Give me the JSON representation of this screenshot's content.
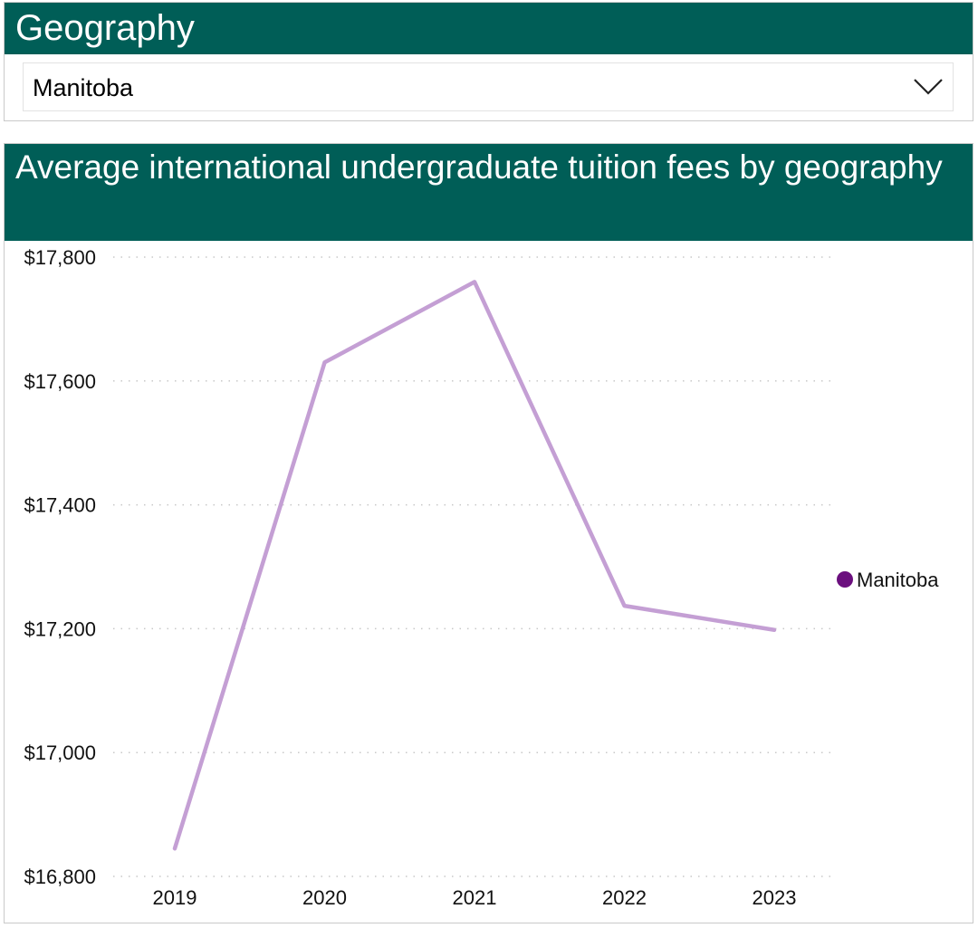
{
  "geography_filter": {
    "title": "Geography",
    "selected": "Manitoba"
  },
  "chart_panel": {
    "title": "Average international undergraduate tuition fees by geography"
  },
  "colors": {
    "header_bg": "#005e57",
    "line": "#c49fd4",
    "legend_marker": "#6b0f7e",
    "grid": "#c8c8c8"
  },
  "chart_data": {
    "type": "line",
    "title": "Average international undergraduate tuition fees by geography",
    "x": [
      "2019",
      "2020",
      "2021",
      "2022",
      "2023"
    ],
    "series": [
      {
        "name": "Manitoba",
        "values": [
          16845,
          17630,
          17760,
          17237,
          17198
        ]
      }
    ],
    "ylim": [
      16800,
      17800
    ],
    "yticks": [
      16800,
      17000,
      17200,
      17400,
      17600,
      17800
    ],
    "ytick_labels": [
      "$16,800",
      "$17,000",
      "$17,200",
      "$17,400",
      "$17,600",
      "$17,800"
    ],
    "xlabel": "",
    "ylabel": "",
    "grid": true,
    "legend": {
      "position": "right",
      "entries": [
        "Manitoba"
      ]
    }
  }
}
